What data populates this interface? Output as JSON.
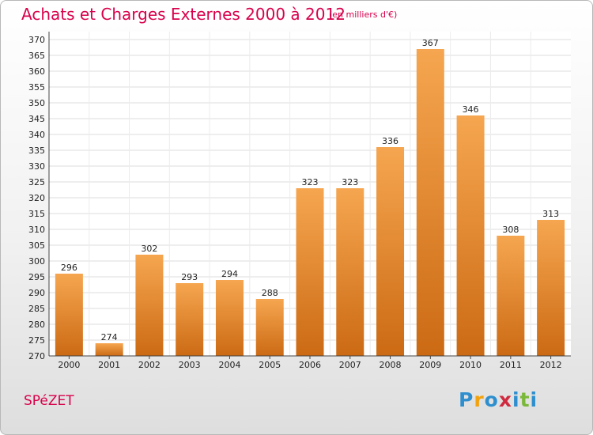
{
  "header": {
    "title": "Achats et Charges Externes 2000 à 2012",
    "subtitle": "(en milliers d'€)"
  },
  "footer": {
    "town": "SPéZET",
    "logo": "Proxiti"
  },
  "colors": {
    "title": "#d9004c",
    "bar_top": "#f6a650",
    "bar_bottom": "#cc6a14",
    "logo": [
      "#2f8fce",
      "#f2a20d",
      "#2f8fce",
      "#cf2a3f",
      "#2f8fce",
      "#7ab83a",
      "#2f8fce"
    ]
  },
  "chart_data": {
    "type": "bar",
    "categories": [
      "2000",
      "2001",
      "2002",
      "2003",
      "2004",
      "2005",
      "2006",
      "2007",
      "2008",
      "2009",
      "2010",
      "2011",
      "2012"
    ],
    "values": [
      296,
      274,
      302,
      293,
      294,
      288,
      323,
      323,
      336,
      367,
      346,
      308,
      313
    ],
    "title": "Achats et Charges Externes 2000 à 2012",
    "subtitle": "(en milliers d'€)",
    "ylim": [
      270,
      370
    ],
    "yticks": [
      270,
      275,
      280,
      285,
      290,
      295,
      300,
      305,
      310,
      315,
      320,
      325,
      330,
      335,
      340,
      345,
      350,
      355,
      360,
      365,
      370
    ],
    "grid": true
  }
}
